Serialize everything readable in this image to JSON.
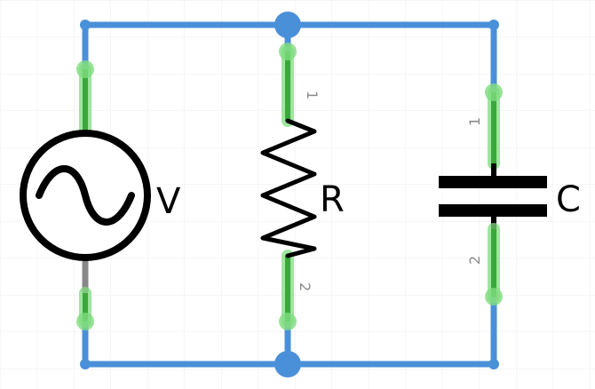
{
  "colors": {
    "wire": "#4a90d9",
    "pin_highlight": "#7fdc7f",
    "pin_core": "#3aa83a",
    "symbol": "#000000",
    "grid": "#ececec",
    "pin_number": "#8a8a8a",
    "lead_gray": "#888888"
  },
  "components": {
    "source": {
      "label": "V",
      "icon": "ac-voltage-source-icon"
    },
    "resistor": {
      "label": "R",
      "pin1": "1",
      "pin2": "2",
      "icon": "resistor-zigzag-icon"
    },
    "capacitor": {
      "label": "C",
      "pin1": "1",
      "pin2": "2",
      "icon": "capacitor-plates-icon"
    }
  }
}
